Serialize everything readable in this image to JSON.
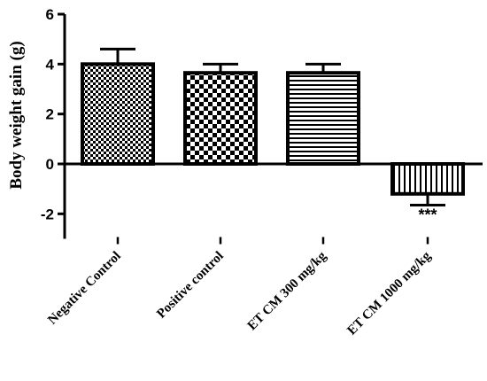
{
  "chart_data": {
    "type": "bar",
    "ylabel": "Body weight gain (g)",
    "ylim": [
      -3,
      6
    ],
    "yticks": [
      -2,
      0,
      2,
      4,
      6
    ],
    "categories": [
      "Negative Control",
      "Positive control",
      "ET CM 300 mg/kg",
      "ET CM 1000 mg/kg"
    ],
    "values": [
      4.0,
      3.65,
      3.65,
      -1.2
    ],
    "errors": [
      0.6,
      0.35,
      0.35,
      0.45
    ],
    "patterns": [
      "checkerboard-fine",
      "checkerboard-coarse",
      "horizontal-stripes",
      "vertical-stripes"
    ],
    "annotations": [
      "",
      "",
      "",
      "***"
    ],
    "grid": false,
    "bar_edge_color": "#000000"
  }
}
